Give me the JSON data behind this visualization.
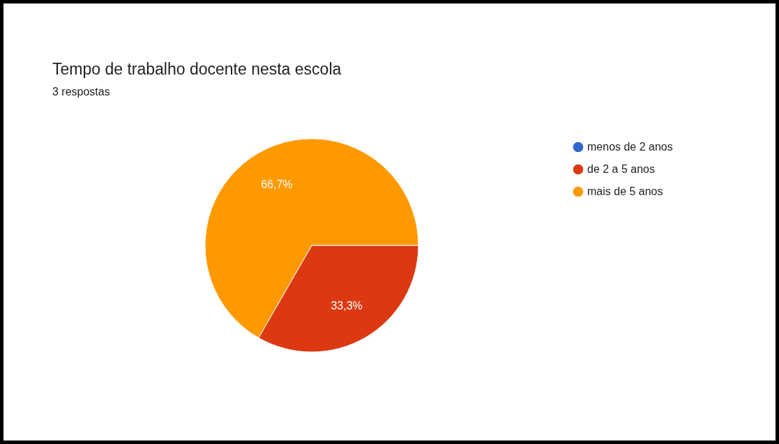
{
  "chart_data": {
    "type": "pie",
    "title": "Tempo de trabalho docente nesta escola",
    "subtitle": "3 respostas",
    "categories": [
      "menos de 2 anos",
      "de 2 a 5 anos",
      "mais de 5 anos"
    ],
    "values": [
      0,
      33.3,
      66.7
    ],
    "colors": [
      "#3366cc",
      "#dc3912",
      "#ff9900"
    ],
    "value_labels": [
      null,
      "33,3%",
      "66,7%"
    ],
    "legend": "right"
  }
}
